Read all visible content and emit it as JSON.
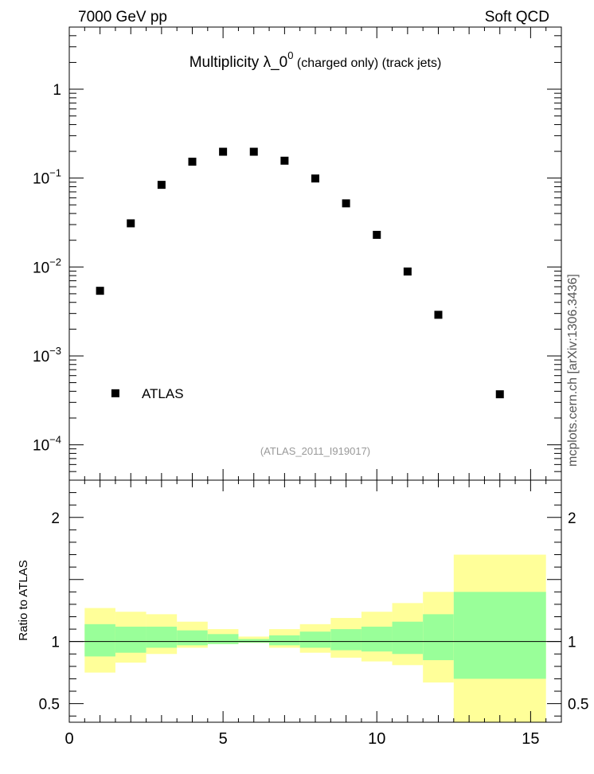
{
  "header": {
    "left": "7000 GeV pp",
    "right": "Soft QCD"
  },
  "side_label": "mcplots.cern.ch [arXiv:1306.3436]",
  "chart_data": [
    {
      "type": "scatter",
      "title_main": "Multiplicity  λ_0",
      "title_sup": "0",
      "title_sub": " (charged only) (track jets)",
      "analysis_label": "(ATLAS_2011_I919017)",
      "y_scale": "log",
      "ylim": [
        4e-05,
        5
      ],
      "xlim": [
        0,
        16
      ],
      "y_tick_labels": [
        {
          "value": 1,
          "base": "1",
          "exp": ""
        },
        {
          "value": 0.1,
          "base": "10",
          "exp": "−1"
        },
        {
          "value": 0.01,
          "base": "10",
          "exp": "−2"
        },
        {
          "value": 0.001,
          "base": "10",
          "exp": "−3"
        },
        {
          "value": 0.0001,
          "base": "10",
          "exp": "−4"
        }
      ],
      "legend": {
        "position": "bottom-left",
        "entries": [
          "ATLAS"
        ]
      },
      "series": [
        {
          "name": "ATLAS",
          "x": [
            1,
            2,
            3,
            4,
            5,
            6,
            7,
            8,
            9,
            10,
            11,
            12,
            14
          ],
          "y": [
            0.0054,
            0.031,
            0.084,
            0.153,
            0.198,
            0.198,
            0.157,
            0.099,
            0.052,
            0.023,
            0.0089,
            0.0029,
            0.00037
          ]
        }
      ]
    },
    {
      "type": "area",
      "ylabel": "Ratio to ATLAS",
      "xlim": [
        0,
        16
      ],
      "ylim": [
        0.35,
        2.3
      ],
      "x_tick_labels": [
        "0",
        "5",
        "10",
        "15"
      ],
      "x_tick_values": [
        0,
        5,
        10,
        15
      ],
      "y_tick_labels": [
        "2",
        "1",
        "0.5"
      ],
      "y_tick_values": [
        2,
        1,
        0.5
      ],
      "reference_line": 1,
      "bins": [
        {
          "xlo": 0.5,
          "xhi": 1.5,
          "inner": [
            0.88,
            1.14
          ],
          "outer": [
            0.75,
            1.27
          ]
        },
        {
          "xlo": 1.5,
          "xhi": 2.5,
          "inner": [
            0.91,
            1.12
          ],
          "outer": [
            0.83,
            1.24
          ]
        },
        {
          "xlo": 2.5,
          "xhi": 3.5,
          "inner": [
            0.95,
            1.12
          ],
          "outer": [
            0.9,
            1.22
          ]
        },
        {
          "xlo": 3.5,
          "xhi": 4.5,
          "inner": [
            0.97,
            1.09
          ],
          "outer": [
            0.95,
            1.16
          ]
        },
        {
          "xlo": 4.5,
          "xhi": 5.5,
          "inner": [
            0.98,
            1.06
          ],
          "outer": [
            0.98,
            1.1
          ]
        },
        {
          "xlo": 5.5,
          "xhi": 6.5,
          "inner": [
            0.99,
            1.02
          ],
          "outer": [
            0.99,
            1.04
          ]
        },
        {
          "xlo": 6.5,
          "xhi": 7.5,
          "inner": [
            0.97,
            1.05
          ],
          "outer": [
            0.95,
            1.1
          ]
        },
        {
          "xlo": 7.5,
          "xhi": 8.5,
          "inner": [
            0.95,
            1.08
          ],
          "outer": [
            0.91,
            1.14
          ]
        },
        {
          "xlo": 8.5,
          "xhi": 9.5,
          "inner": [
            0.93,
            1.1
          ],
          "outer": [
            0.87,
            1.19
          ]
        },
        {
          "xlo": 9.5,
          "xhi": 10.5,
          "inner": [
            0.92,
            1.12
          ],
          "outer": [
            0.84,
            1.24
          ]
        },
        {
          "xlo": 10.5,
          "xhi": 11.5,
          "inner": [
            0.9,
            1.16
          ],
          "outer": [
            0.81,
            1.31
          ]
        },
        {
          "xlo": 11.5,
          "xhi": 12.5,
          "inner": [
            0.85,
            1.22
          ],
          "outer": [
            0.67,
            1.4
          ]
        },
        {
          "xlo": 12.5,
          "xhi": 15.5,
          "inner": [
            0.7,
            1.4
          ],
          "outer": [
            0.3,
            1.7
          ]
        }
      ],
      "colors": {
        "inner": "#99ff99",
        "outer": "#ffff99"
      }
    }
  ]
}
